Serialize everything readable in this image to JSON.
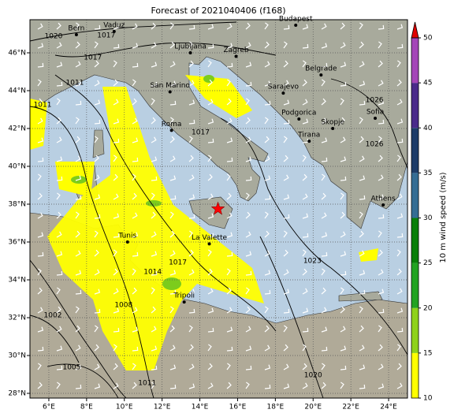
{
  "title": "Forecast of 2021040406 (f168)",
  "map": {
    "xlim": [
      5,
      25
    ],
    "ylim": [
      27.75,
      47.75
    ],
    "grid": true,
    "xticks": [
      {
        "value": 6,
        "label": "6°E"
      },
      {
        "value": 8,
        "label": "8°E"
      },
      {
        "value": 10,
        "label": "10°E"
      },
      {
        "value": 12,
        "label": "12°E"
      },
      {
        "value": 14,
        "label": "14°E"
      },
      {
        "value": 16,
        "label": "16°E"
      },
      {
        "value": 18,
        "label": "18°E"
      },
      {
        "value": 20,
        "label": "20°E"
      },
      {
        "value": 22,
        "label": "22°E"
      },
      {
        "value": 24,
        "label": "24°E"
      }
    ],
    "yticks": [
      {
        "value": 28,
        "label": "28°N"
      },
      {
        "value": 30,
        "label": "30°N"
      },
      {
        "value": 32,
        "label": "32°N"
      },
      {
        "value": 34,
        "label": "34°N"
      },
      {
        "value": 36,
        "label": "36°N"
      },
      {
        "value": 38,
        "label": "38°N"
      },
      {
        "value": 40,
        "label": "40°N"
      },
      {
        "value": 42,
        "label": "42°N"
      },
      {
        "value": 44,
        "label": "44°N"
      },
      {
        "value": 46,
        "label": "46°N"
      }
    ],
    "cities": [
      {
        "name": "Bern",
        "lon": 7.46,
        "lat": 46.96
      },
      {
        "name": "Vaduz",
        "lon": 9.46,
        "lat": 47.13
      },
      {
        "name": "Budapest",
        "lon": 19.08,
        "lat": 47.46
      },
      {
        "name": "Ljubljana",
        "lon": 13.5,
        "lat": 46.0
      },
      {
        "name": "Zagreb",
        "lon": 15.92,
        "lat": 45.81
      },
      {
        "name": "San Marino",
        "lon": 12.42,
        "lat": 43.94
      },
      {
        "name": "Belgrade",
        "lon": 20.42,
        "lat": 44.83
      },
      {
        "name": "Sarajevo",
        "lon": 18.42,
        "lat": 43.87
      },
      {
        "name": "Podgorica",
        "lon": 19.25,
        "lat": 42.5
      },
      {
        "name": "Skopje",
        "lon": 21.04,
        "lat": 42.0
      },
      {
        "name": "Sofia",
        "lon": 23.29,
        "lat": 42.54
      },
      {
        "name": "Roma",
        "lon": 12.5,
        "lat": 41.9
      },
      {
        "name": "Tirana",
        "lon": 19.79,
        "lat": 41.33
      },
      {
        "name": "Tunis",
        "lon": 10.17,
        "lat": 36.0
      },
      {
        "name": "Athens",
        "lon": 23.71,
        "lat": 37.96
      },
      {
        "name": "La Valette",
        "lon": 14.5,
        "lat": 35.9
      },
      {
        "name": "Tripoli",
        "lon": 13.17,
        "lat": 32.83
      }
    ],
    "marker": {
      "lon": 14.96,
      "lat": 37.75,
      "color": "#ff0000"
    },
    "isobar_labels": [
      {
        "value": 1020,
        "lon": 6.25,
        "lat": 46.88
      },
      {
        "value": 1017,
        "lon": 9.04,
        "lat": 46.92
      },
      {
        "value": 1017,
        "lon": 8.33,
        "lat": 45.75
      },
      {
        "value": 1011,
        "lon": 7.38,
        "lat": 44.42
      },
      {
        "value": 1011,
        "lon": 5.67,
        "lat": 43.25
      },
      {
        "value": 1017,
        "lon": 14.04,
        "lat": 41.79
      },
      {
        "value": 1017,
        "lon": 12.83,
        "lat": 34.92
      },
      {
        "value": 1014,
        "lon": 11.5,
        "lat": 34.42
      },
      {
        "value": 1008,
        "lon": 9.96,
        "lat": 32.67
      },
      {
        "value": 1002,
        "lon": 6.21,
        "lat": 32.13
      },
      {
        "value": 1005,
        "lon": 7.21,
        "lat": 29.38
      },
      {
        "value": 1011,
        "lon": 11.21,
        "lat": 28.54
      },
      {
        "value": 1020,
        "lon": 20.0,
        "lat": 28.96
      },
      {
        "value": 1023,
        "lon": 19.96,
        "lat": 35.0
      },
      {
        "value": 1026,
        "lon": 23.25,
        "lat": 43.5
      },
      {
        "value": 1026,
        "lon": 23.25,
        "lat": 41.17
      }
    ]
  },
  "colorbar": {
    "label": "10 m wind speed (m/s)",
    "lim": [
      10,
      50
    ],
    "ticks": [
      10,
      15,
      20,
      25,
      30,
      35,
      40,
      45,
      50
    ],
    "colors": [
      "#ffff00",
      "#8ed21a",
      "#22a322",
      "#087f08",
      "#346d94",
      "#1d3c68",
      "#4a2a8a",
      "#a445b8"
    ],
    "extend_color": "#e00000"
  }
}
